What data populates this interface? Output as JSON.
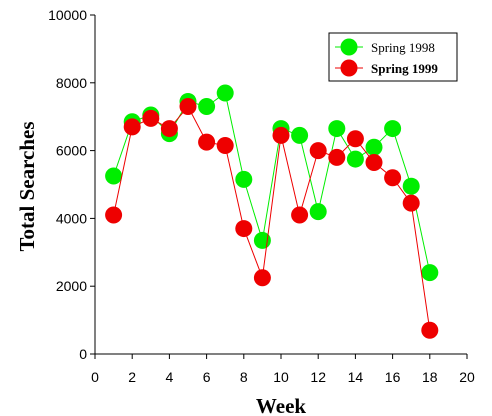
{
  "chart_data": {
    "type": "line",
    "title": "",
    "xlabel": "Week",
    "ylabel": "Total Searches",
    "xlim": [
      0,
      20
    ],
    "ylim": [
      0,
      10000
    ],
    "xticks": [
      0,
      2,
      4,
      6,
      8,
      10,
      12,
      14,
      16,
      18,
      20
    ],
    "yticks": [
      0,
      2000,
      4000,
      6000,
      8000,
      10000
    ],
    "grid": false,
    "legend_position": "top-right",
    "series": [
      {
        "name": "Spring 1998",
        "color": "#00ee00",
        "x": [
          1,
          2,
          3,
          4,
          5,
          6,
          7,
          8,
          9,
          10,
          11,
          12,
          13,
          14,
          15,
          16,
          17,
          18
        ],
        "values": [
          5250,
          6850,
          7050,
          6500,
          7450,
          7300,
          7700,
          5150,
          3350,
          6650,
          6450,
          4200,
          6650,
          5750,
          6100,
          6650,
          4950,
          2400
        ]
      },
      {
        "name": "Spring 1999",
        "color": "#ee0000",
        "x": [
          1,
          2,
          3,
          4,
          5,
          6,
          7,
          8,
          9,
          10,
          11,
          12,
          13,
          14,
          15,
          16,
          17,
          18
        ],
        "values": [
          4100,
          6700,
          6950,
          6650,
          7300,
          6250,
          6150,
          3700,
          2250,
          6450,
          4100,
          6000,
          5800,
          6350,
          5650,
          5200,
          4450,
          700
        ]
      }
    ]
  }
}
